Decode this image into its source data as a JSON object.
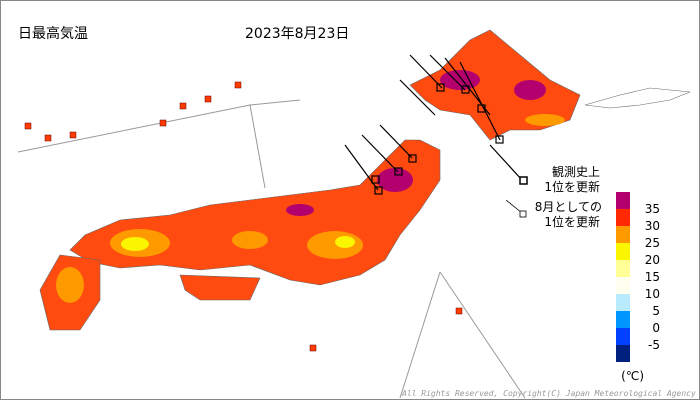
{
  "header": {
    "title": "日最高気温",
    "date": "2023年8月23日"
  },
  "marker_legend": [
    {
      "line1": "観測史上",
      "line2": "1位を更新"
    },
    {
      "line1": "8月としての",
      "line2": "1位を更新"
    }
  ],
  "color_scale": {
    "colors": [
      "#b4006e",
      "#ff2800",
      "#ff9900",
      "#faf500",
      "#ffff96",
      "#fffff0",
      "#b9ebff",
      "#0096ff",
      "#0041ff",
      "#002080"
    ],
    "ticks": [
      35,
      30,
      25,
      20,
      15,
      10,
      5,
      0,
      -5
    ],
    "unit": "(℃)"
  },
  "footer": {
    "copyright": "All Rights Reserved, Copyright(C) Japan Meteorological Agency"
  }
}
